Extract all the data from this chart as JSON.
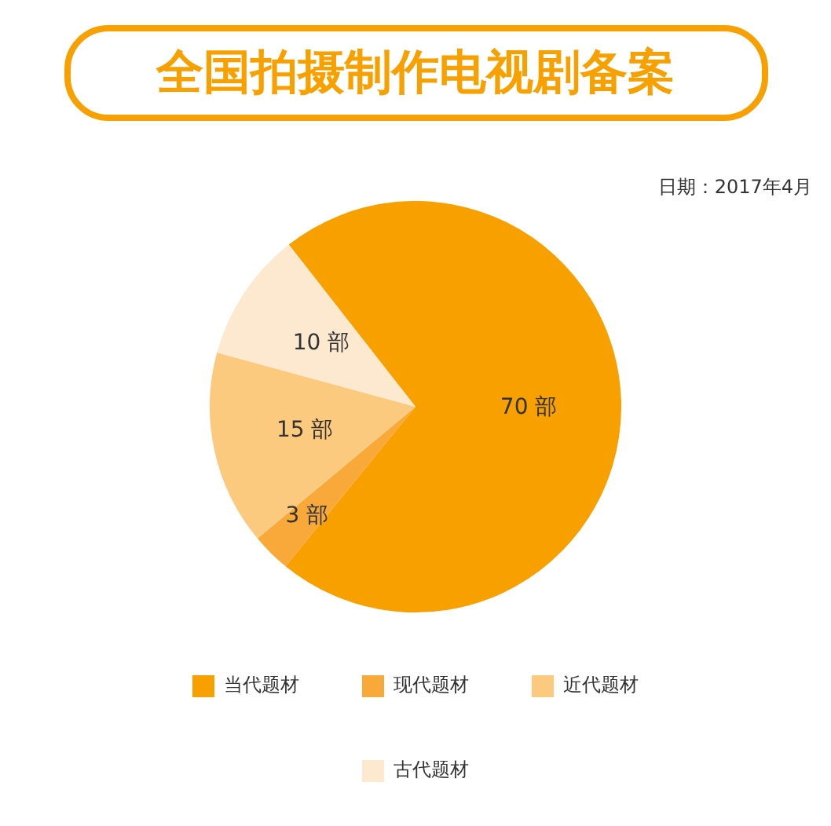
{
  "chart_data": {
    "type": "pie",
    "title": "全国拍摄制作电视剧备案",
    "annotations": [
      "日期：2017年4月"
    ],
    "categories": [
      "当代题材",
      "现代题材",
      "近代题材",
      "古代题材"
    ],
    "values": [
      70,
      3,
      15,
      10
    ],
    "colors": [
      "#f7a000",
      "#f8a93a",
      "#fcca7e",
      "#fce9cf"
    ],
    "value_labels": [
      "70 部",
      "3 部",
      "15 部",
      "10 部"
    ],
    "legend": "bottom"
  }
}
